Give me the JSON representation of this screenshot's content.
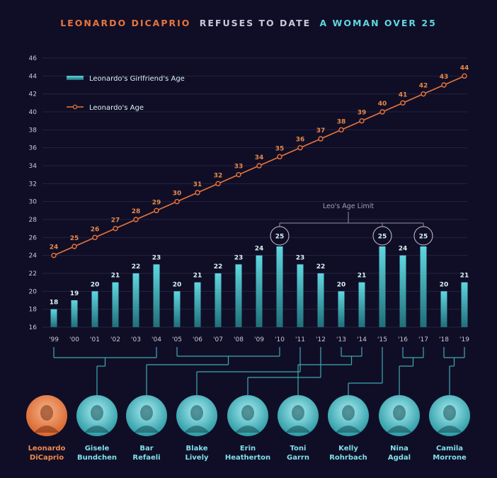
{
  "title": {
    "part1": "LEONARDO DICAPRIO",
    "part2": "REFUSES TO DATE",
    "part3": "A WOMAN OVER 25"
  },
  "colors": {
    "background": "#100e26",
    "accent_orange": "#e8743b",
    "accent_cyan": "#4fc9d4",
    "grid": "#2a2946"
  },
  "annotation": {
    "limit_label": "Leo's Age Limit",
    "limit_value": "25"
  },
  "chart_data": {
    "type": "bar",
    "categories": [
      "'99",
      "'00",
      "'01",
      "'02",
      "'03",
      "'04",
      "'05",
      "'06",
      "'07",
      "'08",
      "'09",
      "'10",
      "'11",
      "'12",
      "'13",
      "'14",
      "'15",
      "'16",
      "'17",
      "'18",
      "'19"
    ],
    "series": [
      {
        "name": "Leonardo's Girlfriend's Age",
        "type": "bar",
        "values": [
          18,
          19,
          20,
          21,
          22,
          23,
          20,
          21,
          22,
          23,
          24,
          25,
          23,
          22,
          20,
          21,
          25,
          24,
          25,
          20,
          21
        ]
      },
      {
        "name": "Leonardo's Age",
        "type": "line",
        "values": [
          24,
          25,
          26,
          27,
          28,
          29,
          30,
          31,
          32,
          33,
          34,
          35,
          36,
          37,
          38,
          39,
          40,
          41,
          42,
          43,
          44
        ]
      }
    ],
    "y_ticks": [
      16,
      18,
      20,
      22,
      24,
      26,
      28,
      30,
      32,
      34,
      36,
      38,
      40,
      42,
      44,
      46
    ],
    "ylim": [
      16,
      46
    ],
    "highlighted": [
      "'10",
      "'15",
      "'17"
    ],
    "grid": true,
    "legend_position": "top-left"
  },
  "girlfriends": [
    {
      "first": "Leonardo",
      "last": "DiCaprio",
      "years": []
    },
    {
      "first": "Gisele",
      "last": "Bundchen",
      "years": [
        "'99",
        "'04"
      ]
    },
    {
      "first": "Bar",
      "last": "Refaeli",
      "years": [
        "'05",
        "'10"
      ]
    },
    {
      "first": "Blake",
      "last": "Lively",
      "years": [
        "'11"
      ]
    },
    {
      "first": "Erin",
      "last": "Heatherton",
      "years": [
        "'12"
      ]
    },
    {
      "first": "Toni",
      "last": "Garrn",
      "years": [
        "'13",
        "'14"
      ]
    },
    {
      "first": "Kelly",
      "last": "Rohrbach",
      "years": [
        "'15"
      ]
    },
    {
      "first": "Nina",
      "last": "Agdal",
      "years": [
        "'16",
        "'17"
      ]
    },
    {
      "first": "Camila",
      "last": "Morrone",
      "years": [
        "'18",
        "'19"
      ]
    }
  ]
}
